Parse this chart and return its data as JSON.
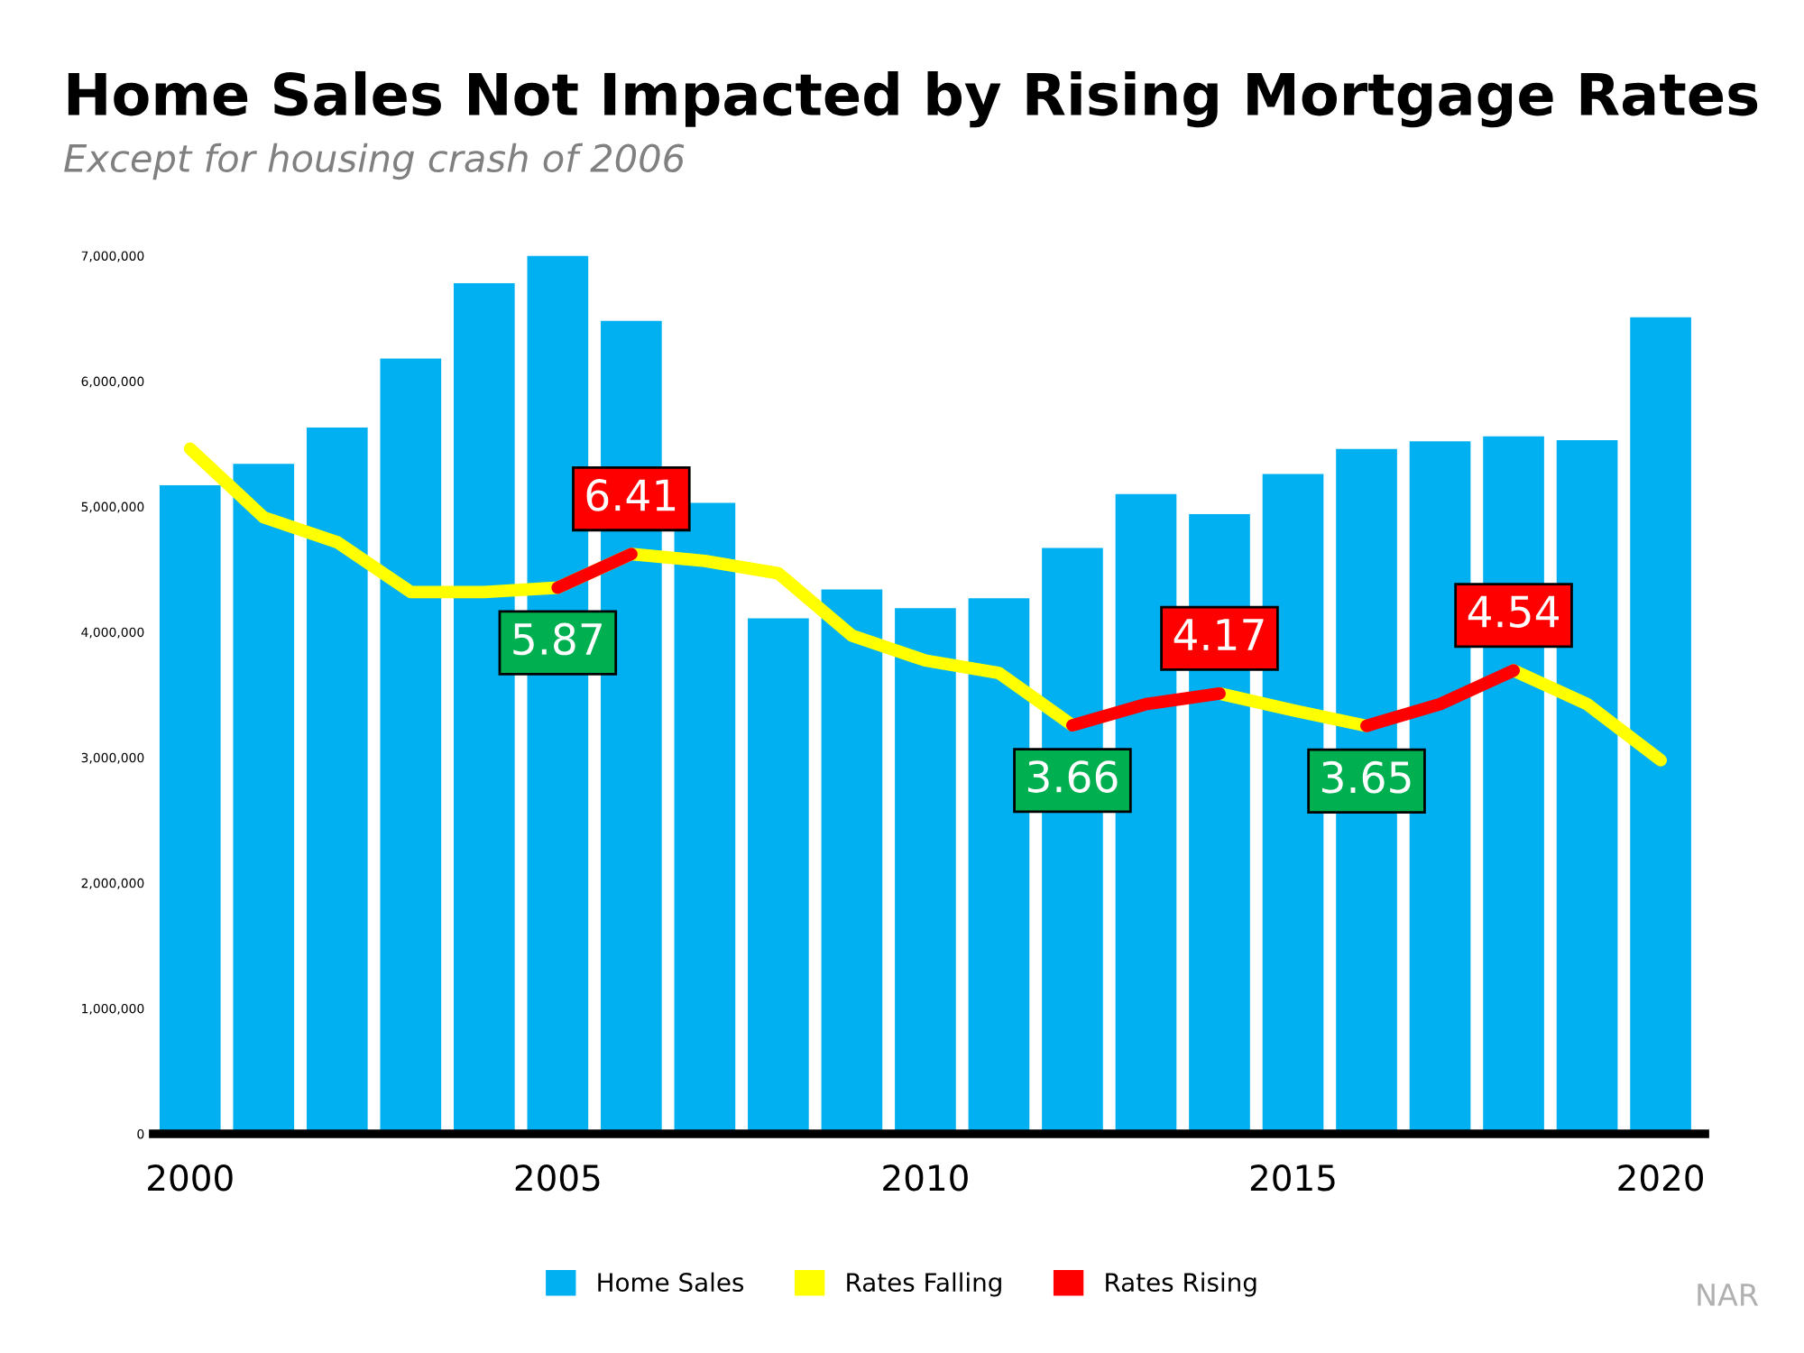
{
  "chart_data": {
    "type": "bar",
    "title": "Home Sales Not Impacted by Rising Mortgage Rates",
    "subtitle": "Except for housing crash of 2006",
    "x": [
      2000,
      2001,
      2002,
      2003,
      2004,
      2005,
      2006,
      2007,
      2008,
      2009,
      2010,
      2011,
      2012,
      2013,
      2014,
      2015,
      2016,
      2017,
      2018,
      2019,
      2020
    ],
    "series": [
      {
        "name": "Home Sales",
        "color": "#00b0f0",
        "values": [
          5170000,
          5340000,
          5630000,
          6180000,
          6780000,
          7000000,
          6480000,
          5030000,
          4110000,
          4340000,
          4190000,
          4270000,
          4670000,
          5100000,
          4940000,
          5260000,
          5460000,
          5520000,
          5560000,
          5530000,
          6510000
        ]
      },
      {
        "name": "Rates Falling",
        "type": "line",
        "axis": "y2",
        "color": "#ffff00",
        "values": [
          8.1,
          7.0,
          6.6,
          5.8,
          5.8,
          5.87,
          6.41,
          6.3,
          6.1,
          5.1,
          4.7,
          4.5,
          3.66,
          null,
          4.17,
          3.9,
          3.65,
          null,
          4.54,
          4.0,
          3.1
        ]
      },
      {
        "name": "Rates Rising",
        "type": "line",
        "axis": "y2",
        "color": "#ff0000",
        "values": [
          null,
          null,
          null,
          null,
          null,
          5.87,
          6.41,
          null,
          null,
          null,
          null,
          null,
          3.66,
          4.0,
          4.17,
          null,
          3.65,
          4.0,
          4.54,
          null,
          null
        ],
        "value_labels": [
          null,
          null,
          null,
          null,
          null,
          "5.87",
          "6.41",
          null,
          null,
          null,
          null,
          null,
          "3.66",
          null,
          "4.17",
          null,
          "3.65",
          null,
          "4.54",
          null,
          null
        ]
      }
    ],
    "xlim": [
      1999.5,
      2020.6
    ],
    "xticks": [
      2000,
      2005,
      2010,
      2015,
      2020
    ],
    "ylim": [
      0,
      7000000
    ],
    "yticks": [
      {
        "value": 0,
        "label": "0"
      },
      {
        "value": 1000000,
        "label": "1,000,000"
      },
      {
        "value": 2000000,
        "label": "2,000,000"
      },
      {
        "value": 3000000,
        "label": "3,000,000"
      },
      {
        "value": 4000000,
        "label": "4,000,000"
      },
      {
        "value": 5000000,
        "label": "5,000,000"
      },
      {
        "value": 6000000,
        "label": "6,000,000"
      },
      {
        "value": 7000000,
        "label": "7,000,000"
      }
    ],
    "grid": false,
    "legend": "bottom",
    "marker": "none",
    "line_style": "solid",
    "annotations": [
      "NAR"
    ]
  }
}
